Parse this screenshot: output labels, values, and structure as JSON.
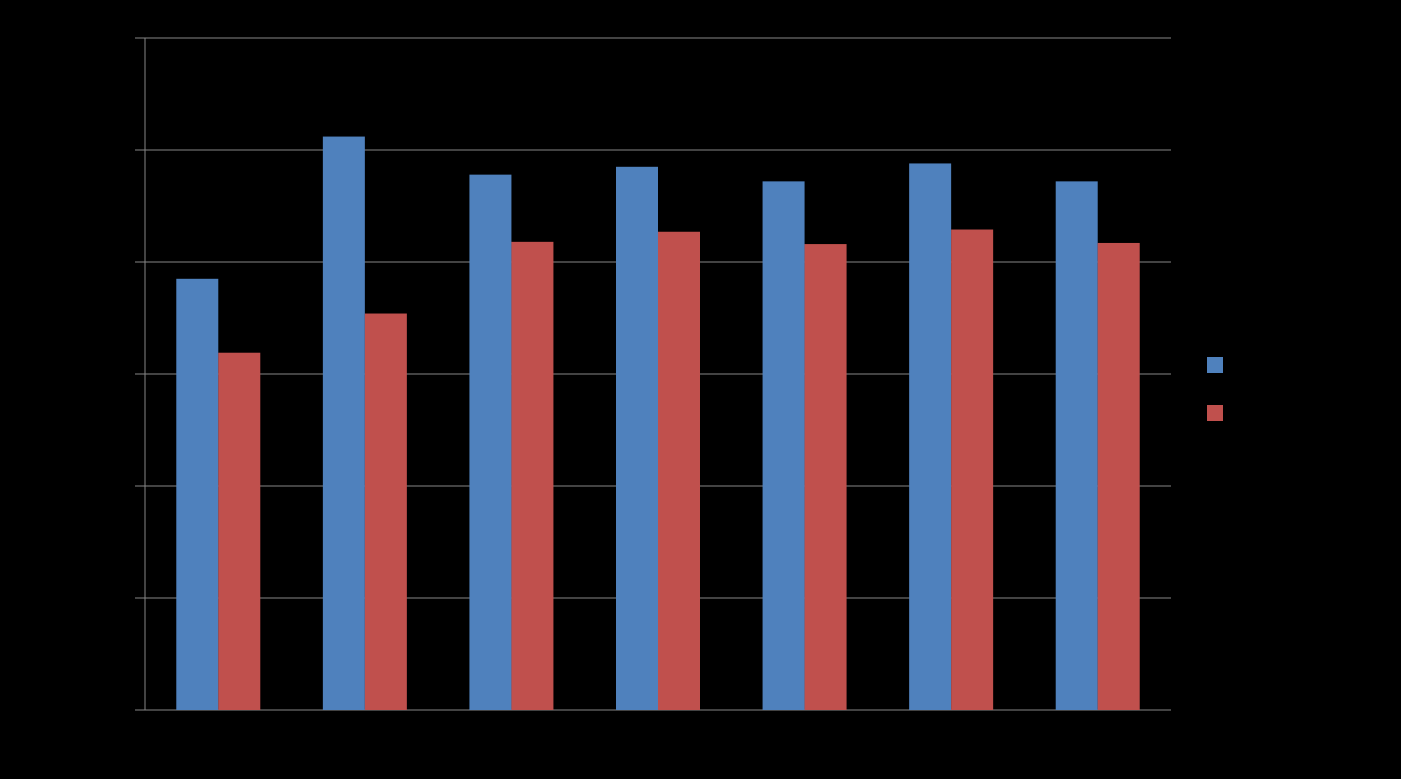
{
  "chart_data": {
    "type": "bar",
    "categories": [
      null,
      null,
      null,
      null,
      null,
      null,
      null
    ],
    "series": [
      {
        "color": "#4f81bd",
        "values": [
          3.85,
          5.12,
          4.78,
          4.85,
          4.72,
          4.88,
          4.72
        ]
      },
      {
        "color": "#c0504d",
        "values": [
          3.19,
          3.54,
          4.18,
          4.27,
          4.16,
          4.29,
          4.17
        ]
      }
    ],
    "ylim": [
      0,
      6
    ],
    "yticks": [
      0,
      1,
      2,
      3,
      4,
      5,
      6
    ],
    "grid": true
  }
}
